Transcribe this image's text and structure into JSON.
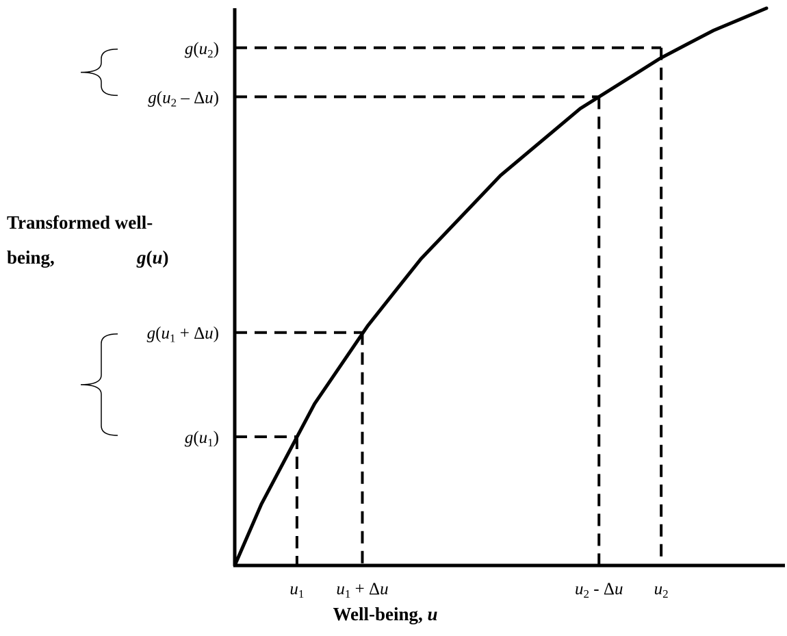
{
  "chart_data": {
    "type": "line",
    "title": "",
    "xlabel": {
      "text": "Well-being, ",
      "var": "u"
    },
    "ylabel": {
      "line1": "Transformed well-",
      "line2": "being,",
      "var_fn": "g",
      "var": "u"
    },
    "xlim": [
      0,
      10
    ],
    "ylim": [
      0,
      10
    ],
    "grid": false,
    "legend": "none",
    "curve": {
      "name": "",
      "x": [
        0,
        0.5,
        1.0,
        1.5,
        2.0,
        2.5,
        3.0,
        3.5,
        4.0,
        4.5,
        5.0,
        5.5,
        6.0,
        6.5,
        7.0,
        7.5,
        8.0,
        8.5,
        9.0,
        9.5,
        10.0
      ],
      "y": [
        0,
        1.1,
        2.0,
        2.9,
        3.6,
        4.3,
        4.9,
        5.5,
        6.0,
        6.5,
        7.0,
        7.4,
        7.8,
        8.2,
        8.5,
        8.8,
        9.1,
        9.35,
        9.6,
        9.8,
        10.0
      ]
    },
    "markers": [
      {
        "x": 1.17,
        "y": 2.31,
        "x_label": {
          "base": "u",
          "sub": "1",
          "rest": ""
        },
        "y_label": {
          "pre": "g(",
          "base": "u",
          "sub": "1",
          "rest": ")"
        }
      },
      {
        "x": 2.4,
        "y": 4.18,
        "x_label": {
          "base": "u",
          "sub": "1",
          "rest": " + Δu"
        },
        "y_label": {
          "pre": "g(",
          "base": "u",
          "sub": "1",
          "rest": " + Δu)"
        }
      },
      {
        "x": 6.85,
        "y": 8.41,
        "x_label": {
          "base": "u",
          "sub": "2",
          "rest": " - Δu"
        },
        "y_label": {
          "pre": "g(",
          "base": "u",
          "sub": "2",
          "rest": " – Δu)"
        }
      },
      {
        "x": 8.02,
        "y": 9.29,
        "x_label": {
          "base": "u",
          "sub": "2",
          "rest": ""
        },
        "y_label": {
          "pre": "g(",
          "base": "u",
          "sub": "2",
          "rest": ")"
        }
      }
    ],
    "braces": [
      {
        "from_marker": 2,
        "to_marker": 3
      },
      {
        "from_marker": 0,
        "to_marker": 1
      }
    ]
  }
}
